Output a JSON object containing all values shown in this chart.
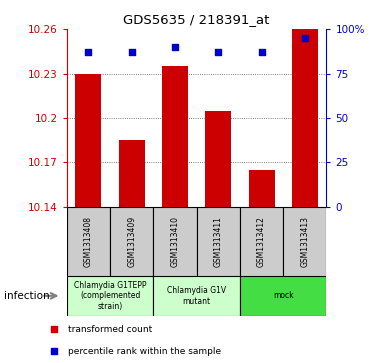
{
  "title": "GDS5635 / 218391_at",
  "samples": [
    "GSM1313408",
    "GSM1313409",
    "GSM1313410",
    "GSM1313411",
    "GSM1313412",
    "GSM1313413"
  ],
  "bar_values": [
    10.23,
    10.185,
    10.235,
    10.205,
    10.165,
    10.26
  ],
  "percentile_values": [
    87,
    87,
    90,
    87,
    87,
    95
  ],
  "bar_color": "#cc0000",
  "dot_color": "#0000cc",
  "ymin": 10.14,
  "ymax": 10.26,
  "yticks": [
    10.14,
    10.17,
    10.2,
    10.23,
    10.26
  ],
  "ytick_labels": [
    "10.14",
    "10.17",
    "10.2",
    "10.23",
    "10.26"
  ],
  "right_yticks": [
    0,
    25,
    50,
    75,
    100
  ],
  "right_ytick_labels": [
    "0",
    "25",
    "50",
    "75",
    "100%"
  ],
  "groups": [
    {
      "label": "Chlamydia G1TEPP\n(complemented\nstrain)",
      "starts": 0,
      "ends": 2,
      "color": "#ccffcc"
    },
    {
      "label": "Chlamydia G1V\nmutant",
      "starts": 2,
      "ends": 4,
      "color": "#ccffcc"
    },
    {
      "label": "mock",
      "starts": 4,
      "ends": 6,
      "color": "#44dd44"
    }
  ],
  "factor_label": "infection",
  "bar_width": 0.6,
  "dotted_grid_color": "#555555",
  "left_axis_color": "#cc0000",
  "right_axis_color": "#0000cc",
  "sample_box_color": "#cccccc",
  "legend_items": [
    {
      "color": "#cc0000",
      "label": "transformed count"
    },
    {
      "color": "#0000cc",
      "label": "percentile rank within the sample"
    }
  ]
}
